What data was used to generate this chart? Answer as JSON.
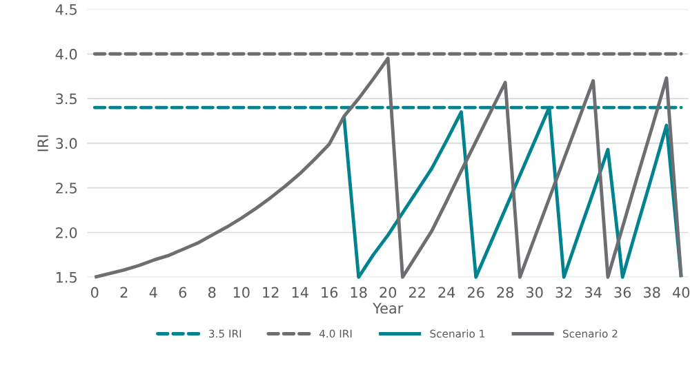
{
  "chart_data": {
    "type": "line",
    "xlabel": "Year",
    "ylabel": "IRI",
    "xlim": [
      -0.5,
      40.5
    ],
    "xticks": [
      0,
      2,
      4,
      6,
      8,
      10,
      12,
      14,
      16,
      18,
      20,
      22,
      24,
      26,
      28,
      30,
      32,
      34,
      36,
      38,
      40
    ],
    "ylim": [
      1.5,
      4.5
    ],
    "yticks": [
      1.5,
      {
        "value": 2,
        "label": "2.0"
      },
      2.5,
      {
        "value": 3,
        "label": "3.0"
      },
      3.5,
      {
        "value": 4,
        "label": "4.0"
      },
      4.5
    ],
    "grid": "y",
    "legend": "bottom",
    "marker": "none",
    "series": [
      {
        "name": "3.5 IRI",
        "color": "#00838f",
        "line_style": "dashed",
        "x": [
          0,
          40
        ],
        "values": [
          3.4,
          3.4
        ]
      },
      {
        "name": "4.0 IRI",
        "color": "#6d6e71",
        "line_style": "dashed",
        "x": [
          0,
          40
        ],
        "values": [
          4.0,
          4.0
        ]
      },
      {
        "name": "Scenario 1",
        "color": "#00838f",
        "line_style": "solid",
        "x": [
          17,
          18,
          19,
          20,
          21,
          22,
          23,
          24,
          25,
          26,
          27,
          28,
          29,
          30,
          31,
          32,
          33,
          34,
          35,
          36,
          37,
          38,
          39,
          40
        ],
        "values": [
          3.3,
          1.5,
          1.75,
          1.97,
          2.22,
          2.47,
          2.72,
          3.03,
          3.35,
          1.5,
          1.88,
          2.26,
          2.64,
          3.02,
          3.4,
          1.5,
          1.98,
          2.45,
          2.93,
          1.5,
          2.07,
          2.63,
          3.2,
          1.5
        ]
      },
      {
        "name": "Scenario 2",
        "color": "#6d6e71",
        "line_style": "solid",
        "x": [
          0,
          1,
          2,
          3,
          4,
          5,
          6,
          7,
          8,
          9,
          10,
          11,
          12,
          13,
          14,
          15,
          16,
          17,
          18,
          19,
          20,
          21,
          22,
          23,
          24,
          25,
          26,
          27,
          28,
          29,
          30,
          31,
          32,
          33,
          34,
          35,
          36,
          37,
          38,
          39,
          40
        ],
        "values": [
          1.5,
          1.54,
          1.58,
          1.63,
          1.69,
          1.74,
          1.81,
          1.88,
          1.97,
          2.06,
          2.16,
          2.27,
          2.39,
          2.52,
          2.66,
          2.82,
          2.99,
          3.3,
          3.5,
          3.72,
          3.95,
          1.5,
          1.76,
          2.02,
          2.35,
          2.69,
          3.02,
          3.35,
          3.68,
          1.5,
          1.94,
          2.38,
          2.82,
          3.26,
          3.7,
          1.5,
          2.06,
          2.62,
          3.17,
          3.73,
          1.5
        ]
      }
    ]
  }
}
